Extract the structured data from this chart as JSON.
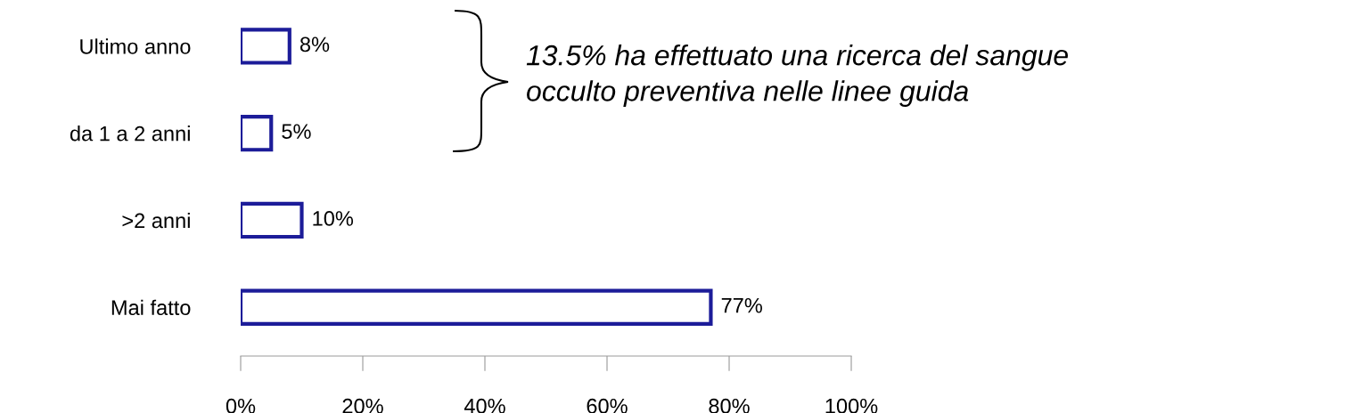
{
  "chart_data": {
    "type": "bar",
    "orientation": "horizontal",
    "categories": [
      "Ultimo anno",
      "da 1 a 2 anni",
      ">2 anni",
      "Mai fatto"
    ],
    "values": [
      8,
      5,
      10,
      77
    ],
    "value_labels": [
      "8%",
      "5%",
      "10%",
      "77%"
    ],
    "color": "#1c1c99",
    "xlim": [
      0,
      100
    ],
    "xticks": [
      {
        "value": 0,
        "label": "0%"
      },
      {
        "value": 20,
        "label": "20%"
      },
      {
        "value": 40,
        "label": "40%"
      },
      {
        "value": 60,
        "label": "60%"
      },
      {
        "value": 80,
        "label": "80%"
      },
      {
        "value": 100,
        "label": "100%"
      }
    ],
    "grid": false,
    "legend": false,
    "annotations": [
      "13.5% ha effettuato una ricerca del sangue\nocculto preventiva nelle linee guida"
    ]
  }
}
